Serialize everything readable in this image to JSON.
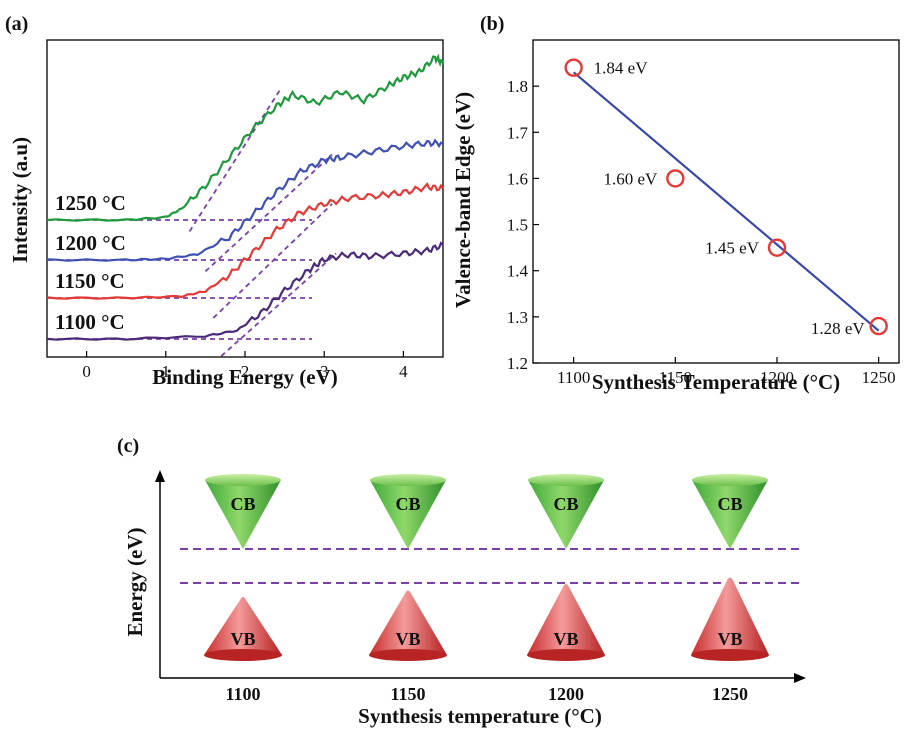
{
  "chart_data": [
    {
      "panel_label": "(a)",
      "type": "line",
      "xlabel": "Binding Energy (eV)",
      "ylabel": "Intensity (a.u)",
      "xlim": [
        -0.5,
        4.5
      ],
      "x_ticks": [
        "0",
        "1",
        "2",
        "3",
        "4"
      ],
      "series": [
        {
          "label": "1250 °C",
          "color": "#1e9a3c",
          "x": [
            -0.5,
            0.5,
            1.0,
            1.2,
            1.5,
            1.8,
            2.1,
            2.4,
            2.6,
            2.9,
            3.2,
            3.5,
            3.8,
            4.0,
            4.2,
            4.4,
            4.5
          ],
          "y": [
            0.0,
            0.0,
            0.05,
            0.2,
            0.6,
            1.1,
            1.6,
            2.0,
            2.2,
            2.05,
            2.25,
            2.1,
            2.35,
            2.5,
            2.6,
            2.85,
            2.75
          ]
        },
        {
          "label": "1200 °C",
          "color": "#3f51b5",
          "x": [
            -0.5,
            0.5,
            1.0,
            1.4,
            1.8,
            2.1,
            2.4,
            2.7,
            3.0,
            3.2,
            3.6,
            4.0,
            4.3,
            4.5
          ],
          "y": [
            0.0,
            0.0,
            0.02,
            0.1,
            0.4,
            0.8,
            1.2,
            1.55,
            1.75,
            1.8,
            1.9,
            2.0,
            2.05,
            2.05
          ]
        },
        {
          "label": "1150 °C",
          "color": "#e53935",
          "x": [
            -0.5,
            0.5,
            1.2,
            1.5,
            1.8,
            2.1,
            2.4,
            2.7,
            3.0,
            3.3,
            3.7,
            4.0,
            4.3,
            4.5
          ],
          "y": [
            0.0,
            0.0,
            0.03,
            0.12,
            0.4,
            0.8,
            1.2,
            1.5,
            1.65,
            1.75,
            1.8,
            1.85,
            1.95,
            1.92
          ]
        },
        {
          "label": "1100 °C",
          "color": "#4a2a7a",
          "x": [
            -0.5,
            0.5,
            1.5,
            1.9,
            2.2,
            2.5,
            2.8,
            3.0,
            3.3,
            3.6,
            4.0,
            4.3,
            4.5
          ],
          "y": [
            0.0,
            0.0,
            0.05,
            0.15,
            0.45,
            0.85,
            1.2,
            1.4,
            1.48,
            1.45,
            1.5,
            1.55,
            1.65
          ]
        }
      ],
      "edge_fits": [
        {
          "x": [
            1.3,
            2.45
          ],
          "y": [
            -0.2,
            2.3
          ]
        },
        {
          "x": [
            1.5,
            3.1
          ],
          "y": [
            -0.2,
            1.85
          ]
        },
        {
          "x": [
            1.6,
            3.1
          ],
          "y": [
            -0.35,
            1.65
          ]
        },
        {
          "x": [
            1.7,
            3.15
          ],
          "y": [
            -0.3,
            1.5
          ]
        }
      ]
    },
    {
      "panel_label": "(b)",
      "type": "scatter",
      "xlabel": "Synthesis Temperature (°C)",
      "ylabel": "Valence-band Edge (eV)",
      "xlim": [
        1080,
        1260
      ],
      "ylim": [
        1.2,
        1.9
      ],
      "x_ticks": [
        "1100",
        "1150",
        "1200",
        "1250"
      ],
      "y_ticks": [
        "1.2",
        "1.3",
        "1.4",
        "1.5",
        "1.6",
        "1.7",
        "1.8"
      ],
      "x": [
        1100,
        1150,
        1200,
        1250
      ],
      "y": [
        1.84,
        1.6,
        1.45,
        1.28
      ],
      "point_labels": [
        "1.84 eV",
        "1.60 eV",
        "1.45 eV",
        "1.28 eV"
      ],
      "fit_line": {
        "x": [
          1100,
          1250
        ],
        "y": [
          1.83,
          1.27
        ]
      },
      "marker_color": "#e53935",
      "line_color": "#3949ab"
    },
    {
      "panel_label": "(c)",
      "type": "diagram",
      "xlabel": "Synthesis temperature (°C)",
      "ylabel": "Energy (eV)",
      "categories": [
        "1100",
        "1150",
        "1200",
        "1250"
      ],
      "cb_label": "CB",
      "vb_label": "VB",
      "vb_top_energy_rank": [
        0,
        1,
        2,
        3
      ]
    }
  ]
}
